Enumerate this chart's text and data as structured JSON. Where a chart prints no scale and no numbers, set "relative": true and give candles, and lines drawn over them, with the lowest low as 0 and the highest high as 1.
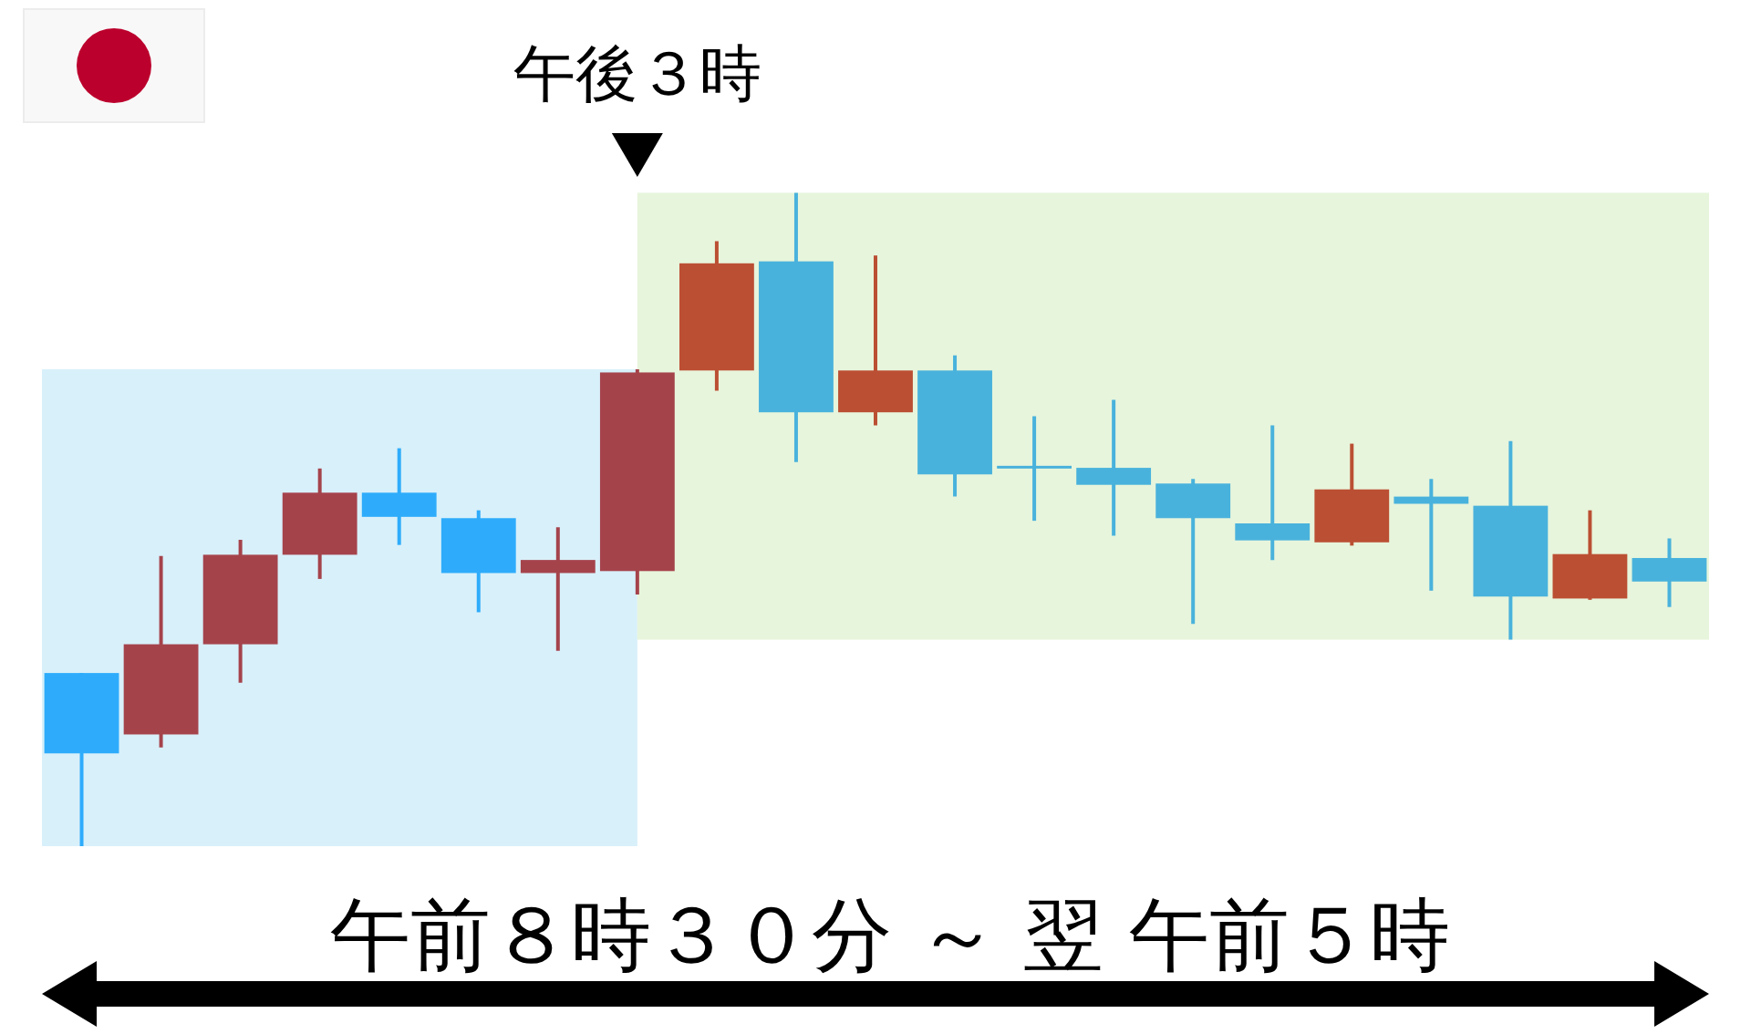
{
  "chart_data": {
    "type": "candlestick",
    "categories": [
      null,
      null,
      null,
      null,
      null,
      null,
      null,
      null,
      null,
      null,
      null,
      null,
      null,
      null,
      null,
      null,
      null,
      null,
      null,
      null,
      null
    ],
    "ohlc": [
      [
        0.265,
        0.265,
        0,
        0.142
      ],
      [
        0.171,
        0.444,
        0.151,
        0.309
      ],
      [
        0.309,
        0.469,
        0.25,
        0.446
      ],
      [
        0.446,
        0.578,
        0.409,
        0.541
      ],
      [
        0.541,
        0.609,
        0.461,
        0.504
      ],
      [
        0.502,
        0.514,
        0.358,
        0.418
      ],
      [
        0.418,
        0.488,
        0.299,
        0.438
      ],
      [
        0.421,
        0.73,
        0.385,
        0.725
      ],
      [
        0.728,
        0.926,
        0.697,
        0.892
      ],
      [
        0.895,
        1,
        0.588,
        0.664
      ],
      [
        0.664,
        0.904,
        0.644,
        0.728
      ],
      [
        0.728,
        0.751,
        0.535,
        0.569
      ],
      [
        0.58,
        0.658,
        0.498,
        0.58
      ],
      [
        0.579,
        0.683,
        0.475,
        0.553
      ],
      [
        0.555,
        0.562,
        0.34,
        0.502
      ],
      [
        0.494,
        0.644,
        0.438,
        0.468
      ],
      [
        0.465,
        0.616,
        0.46,
        0.546
      ],
      [
        0.535,
        0.562,
        0.391,
        0.524
      ],
      [
        0.521,
        0.62,
        0.316,
        0.382
      ],
      [
        0.379,
        0.514,
        0.377,
        0.447
      ],
      [
        0.441,
        0.471,
        0.366,
        0.405
      ]
    ],
    "colors": [
      "#2eacfb",
      "#a5434b",
      "#a5434b",
      "#a5434b",
      "#2eacfb",
      "#2eacfb",
      "#a5434b",
      "#a5434b",
      "#bb4f33",
      "#49b2dc",
      "#bb4f33",
      "#49b2dc",
      "#49b2dc",
      "#49b2dc",
      "#49b2dc",
      "#49b2dc",
      "#bb4f33",
      "#49b2dc",
      "#49b2dc",
      "#bb4f33",
      "#49b2dc"
    ],
    "relative": true,
    "annotations": [
      "午後３時"
    ],
    "xlabel": "午前８時３０分 ～ 翌 午前５時"
  }
}
